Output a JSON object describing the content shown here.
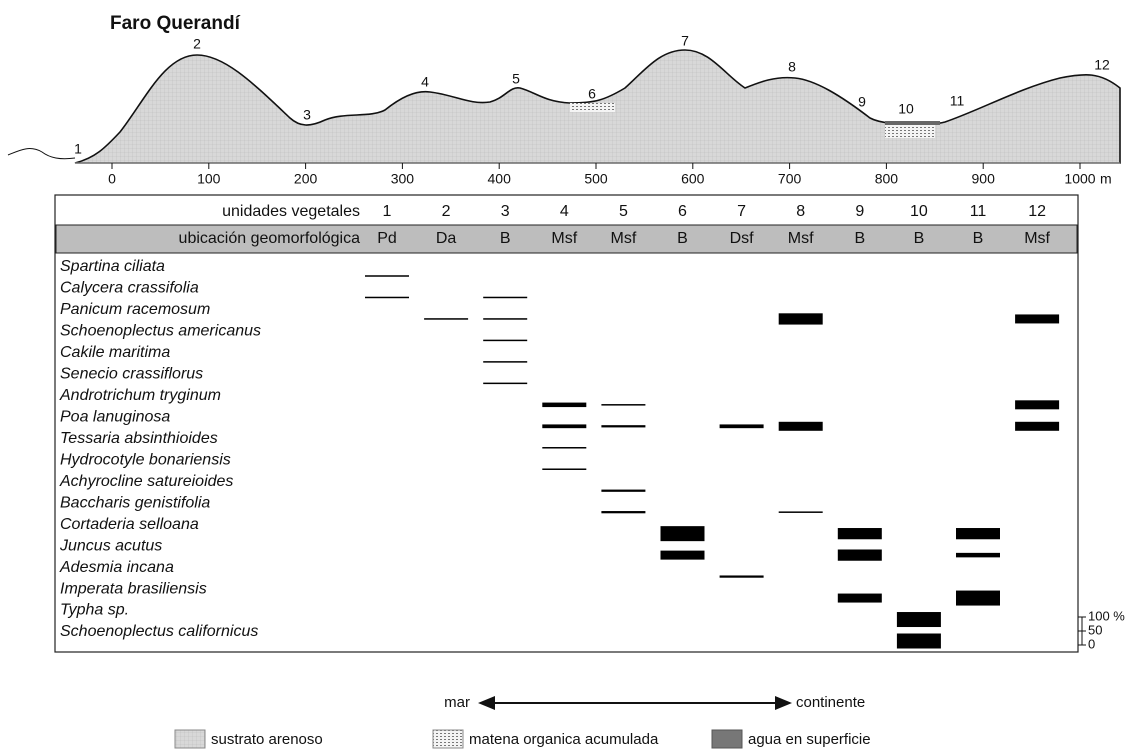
{
  "header": {
    "title": "Faro Querandí"
  },
  "profile": {
    "points": [
      "1",
      "2",
      "3",
      "4",
      "5",
      "6",
      "7",
      "8",
      "9",
      "10",
      "11",
      "12"
    ],
    "x_axis": {
      "ticks": [
        0,
        100,
        200,
        300,
        400,
        500,
        600,
        700,
        800,
        900,
        1000
      ],
      "unit": "m"
    }
  },
  "table": {
    "units_label": "unidades vegetales",
    "units": [
      "1",
      "2",
      "3",
      "4",
      "5",
      "6",
      "7",
      "8",
      "9",
      "10",
      "11",
      "12"
    ],
    "geo_label": "ubicación geomorfológica",
    "geo": [
      "Pd",
      "Da",
      "B",
      "Msf",
      "Msf",
      "B",
      "Dsf",
      "Msf",
      "B",
      "B",
      "B",
      "Msf"
    ],
    "species": [
      {
        "name": "Spartina ciliata",
        "cover": [
          {
            "unit": 1,
            "value": 10
          }
        ]
      },
      {
        "name": "Calycera crassifolia",
        "cover": [
          {
            "unit": 1,
            "value": 10
          },
          {
            "unit": 3,
            "value": 10
          }
        ]
      },
      {
        "name": "Panicum racemosum",
        "cover": [
          {
            "unit": 2,
            "value": 10
          },
          {
            "unit": 3,
            "value": 10
          },
          {
            "unit": 8,
            "value": 75
          },
          {
            "unit": 12,
            "value": 60
          }
        ]
      },
      {
        "name": "Schoenoplectus americanus",
        "cover": [
          {
            "unit": 3,
            "value": 10
          }
        ]
      },
      {
        "name": "Cakile maritima",
        "cover": [
          {
            "unit": 3,
            "value": 10
          }
        ]
      },
      {
        "name": "Senecio crassiflorus",
        "cover": [
          {
            "unit": 3,
            "value": 10
          }
        ]
      },
      {
        "name": "Androtrichum tryginum",
        "cover": [
          {
            "unit": 4,
            "value": 30
          },
          {
            "unit": 5,
            "value": 10
          },
          {
            "unit": 12,
            "value": 60
          }
        ]
      },
      {
        "name": "Poa lanuginosa",
        "cover": [
          {
            "unit": 4,
            "value": 25
          },
          {
            "unit": 5,
            "value": 15
          },
          {
            "unit": 7,
            "value": 25
          },
          {
            "unit": 8,
            "value": 60
          },
          {
            "unit": 12,
            "value": 60
          }
        ]
      },
      {
        "name": "Tessaria absinthioides",
        "cover": [
          {
            "unit": 4,
            "value": 10
          }
        ]
      },
      {
        "name": "Hydrocotyle bonariensis",
        "cover": [
          {
            "unit": 4,
            "value": 10
          }
        ]
      },
      {
        "name": "Achyrocline satureioides",
        "cover": [
          {
            "unit": 5,
            "value": 15
          }
        ]
      },
      {
        "name": "Baccharis genistifolia",
        "cover": [
          {
            "unit": 5,
            "value": 15
          },
          {
            "unit": 8,
            "value": 10
          }
        ]
      },
      {
        "name": "Cortaderia selloana",
        "cover": [
          {
            "unit": 6,
            "value": 100
          },
          {
            "unit": 9,
            "value": 75
          },
          {
            "unit": 11,
            "value": 75
          }
        ]
      },
      {
        "name": "Juncus acutus",
        "cover": [
          {
            "unit": 6,
            "value": 60
          },
          {
            "unit": 9,
            "value": 75
          },
          {
            "unit": 11,
            "value": 30
          }
        ]
      },
      {
        "name": "Adesmia incana",
        "cover": [
          {
            "unit": 7,
            "value": 15
          }
        ]
      },
      {
        "name": "Imperata brasiliensis",
        "cover": [
          {
            "unit": 9,
            "value": 60
          },
          {
            "unit": 11,
            "value": 100
          }
        ]
      },
      {
        "name": "Typha sp.",
        "cover": [
          {
            "unit": 10,
            "value": 100
          }
        ]
      },
      {
        "name": "Schoenoplectus californicus",
        "cover": [
          {
            "unit": 10,
            "value": 100
          }
        ]
      }
    ]
  },
  "cover_scale": {
    "ticks": [
      {
        "value": 100,
        "label": "100 %"
      },
      50,
      0
    ]
  },
  "direction": {
    "from": "mar",
    "to": "continente"
  },
  "legend": [
    "sustrato arenoso",
    "matena organica acumulada",
    "agua en superficie"
  ]
}
